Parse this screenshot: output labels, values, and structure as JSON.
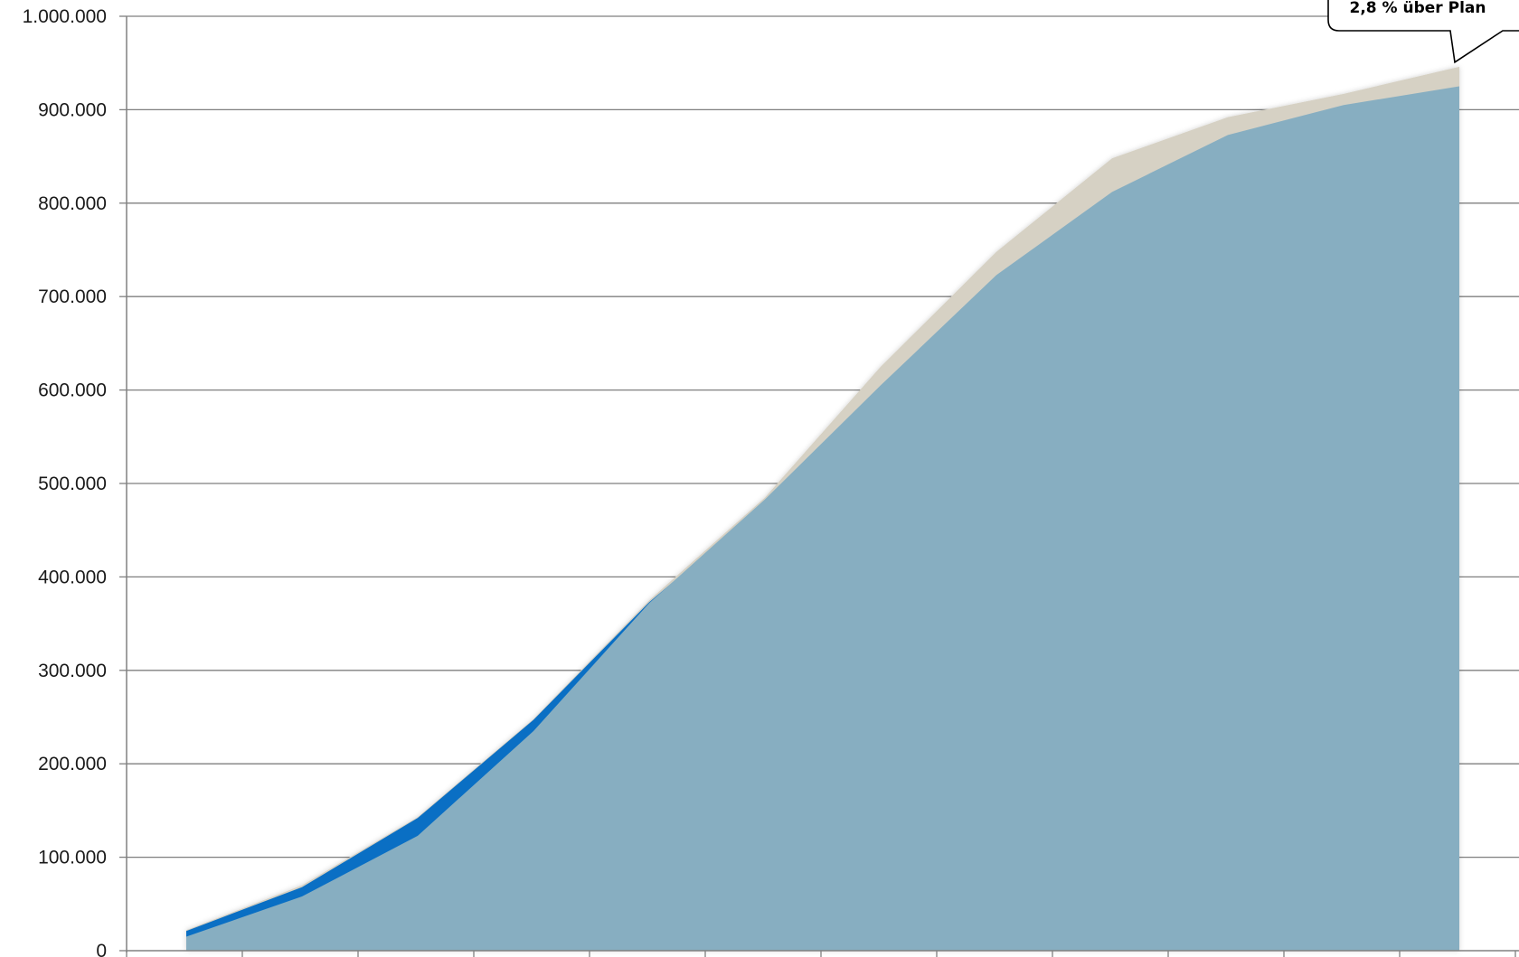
{
  "chart_data": {
    "type": "area",
    "title": "",
    "xlabel": "",
    "ylabel": "",
    "ylim": [
      0,
      1000000
    ],
    "y_ticks": [
      0,
      100000,
      200000,
      300000,
      400000,
      500000,
      600000,
      700000,
      800000,
      900000,
      1000000
    ],
    "y_tick_labels": [
      "0",
      "100.000",
      "200.000",
      "300.000",
      "400.000",
      "500.000",
      "600.000",
      "700.000",
      "800.000",
      "900.000",
      "1.000.000"
    ],
    "x": [
      1,
      2,
      3,
      4,
      5,
      6,
      7,
      8,
      9,
      10,
      11,
      12
    ],
    "grid": true,
    "legend": "none",
    "series": [
      {
        "key": "a",
        "values": [
          22000,
          70000,
          143000,
          248000,
          375000,
          485000,
          625000,
          748000,
          848000,
          892000,
          917000,
          946000
        ],
        "color": "#d6d1c4"
      },
      {
        "key": "b",
        "values": [
          21000,
          68000,
          142000,
          247000,
          373000,
          478000,
          598000,
          716000,
          808000,
          871000,
          904000,
          923000
        ],
        "color": "#0a6fc4"
      },
      {
        "key": "c",
        "values": [
          15000,
          58000,
          123000,
          235000,
          372000,
          483000,
          605000,
          723000,
          812000,
          873000,
          905000,
          925000
        ],
        "color": "#87aec1"
      }
    ],
    "annotation": {
      "text": "2,8 % über Plan",
      "border_color": "#000000",
      "fill_color": "#ffffff"
    },
    "colors": {
      "gridline": "#7f7f7f",
      "axis": "#808080"
    }
  }
}
